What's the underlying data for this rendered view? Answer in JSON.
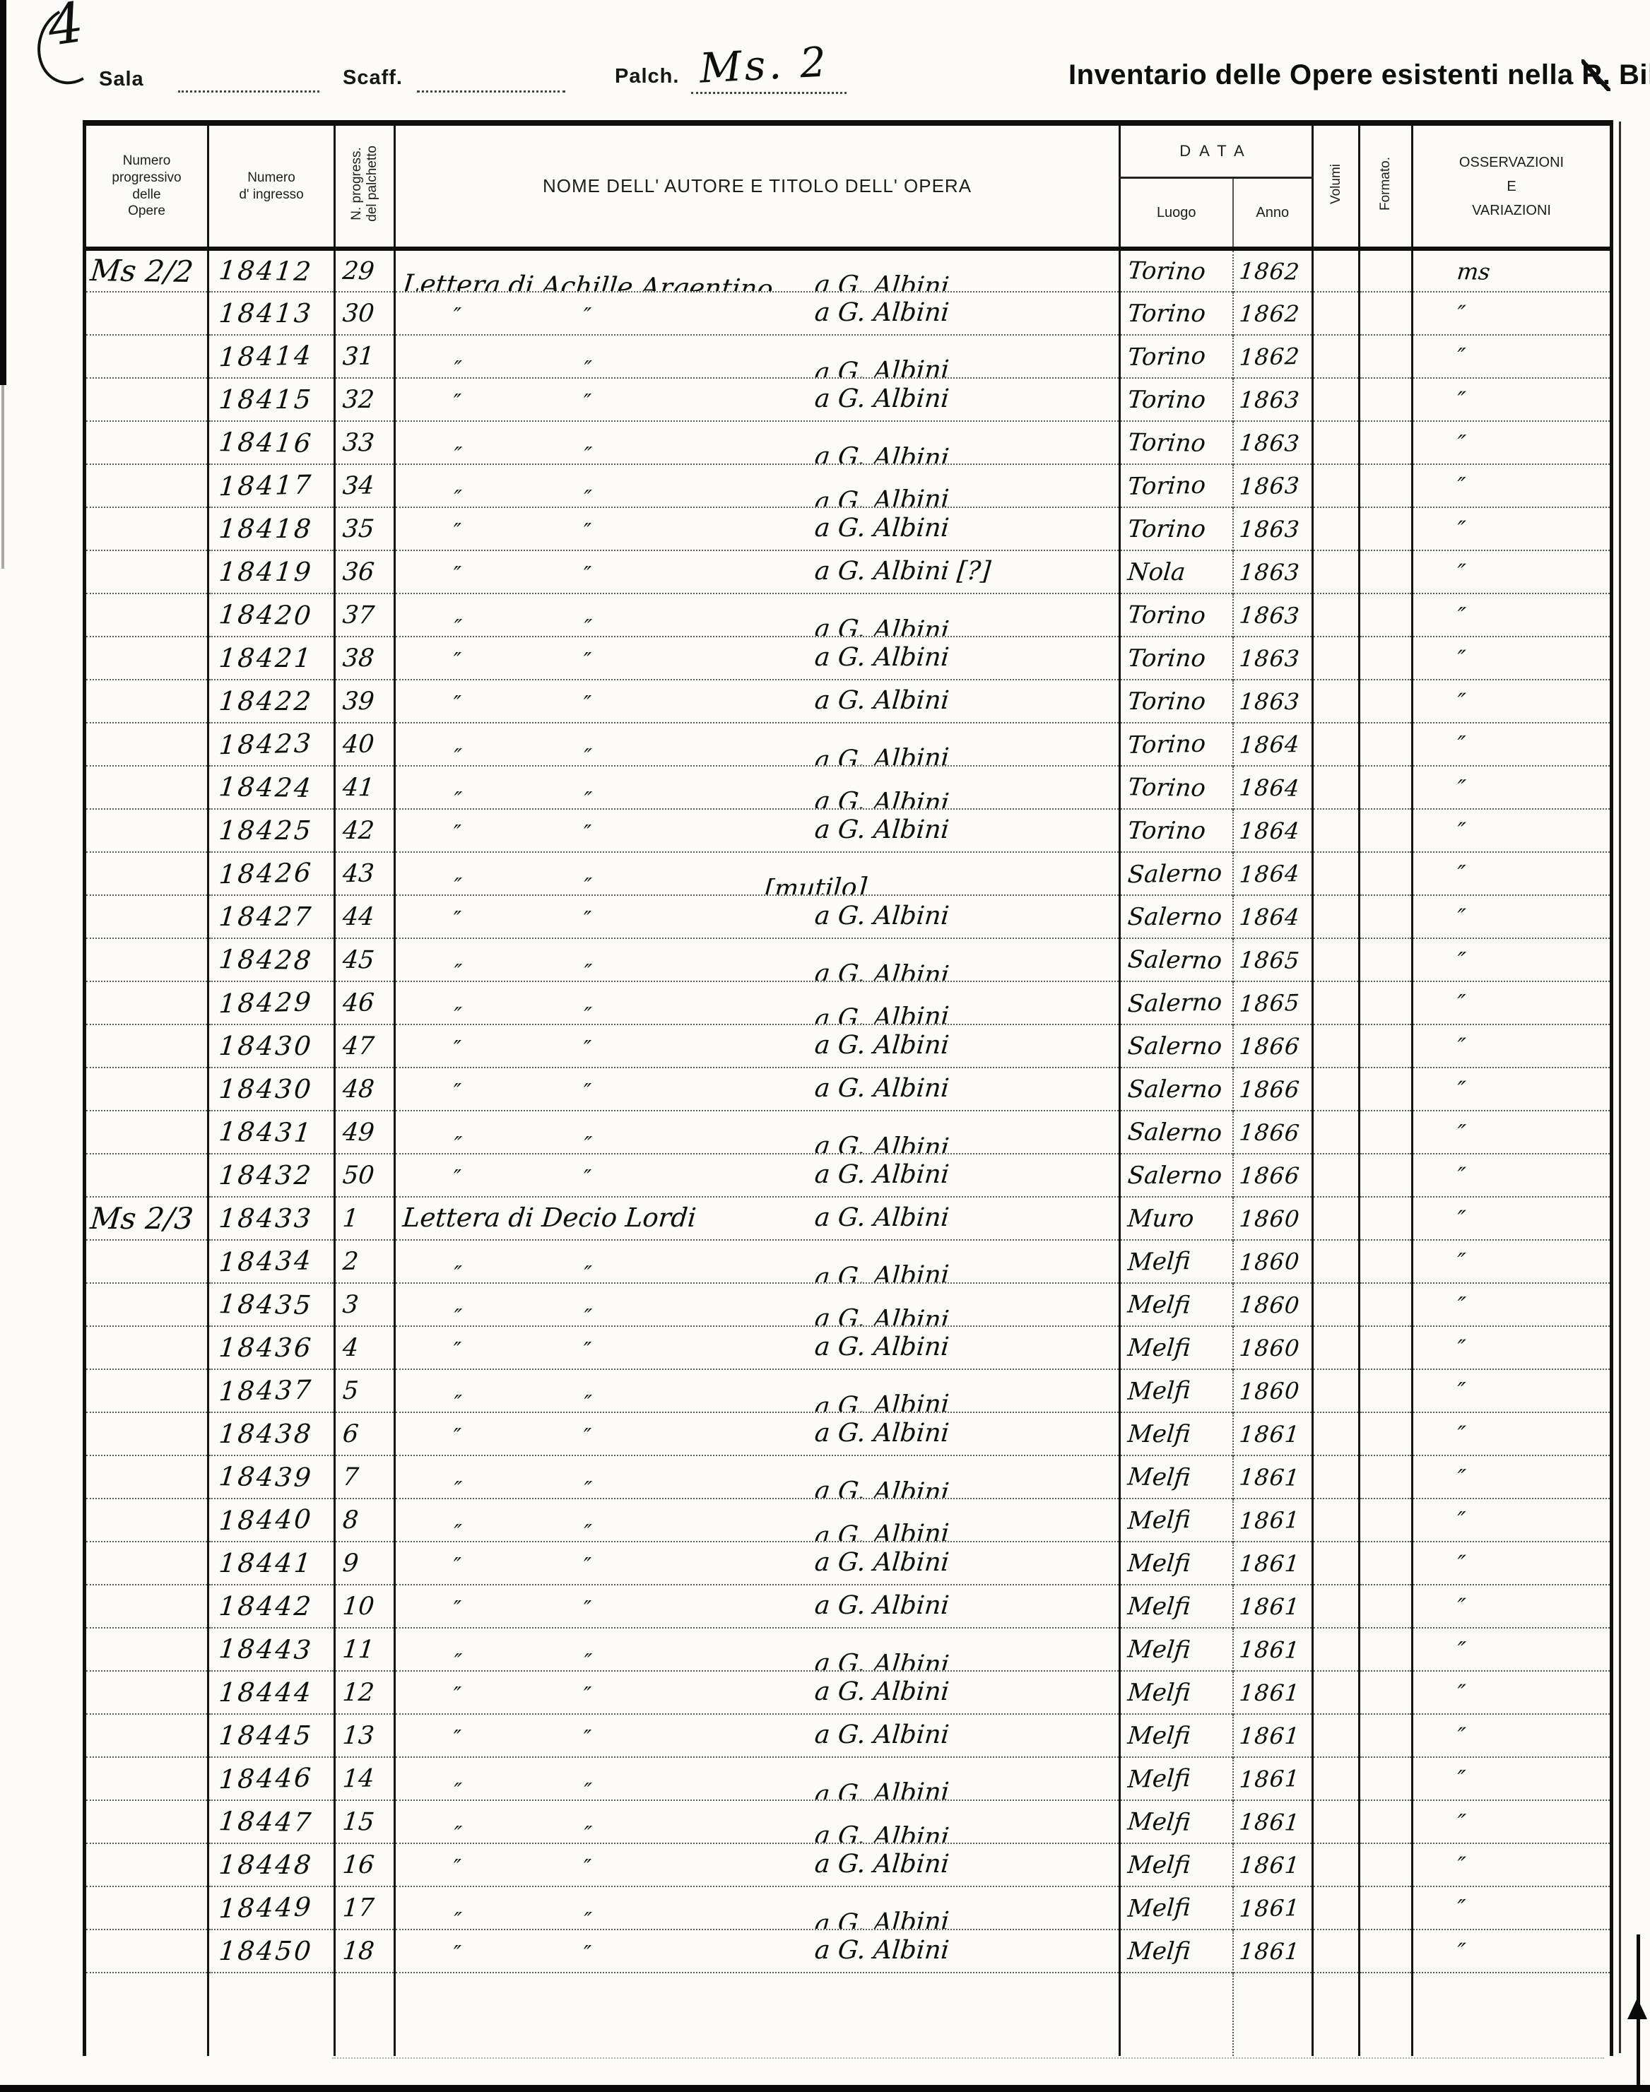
{
  "corner_mark": "4",
  "form_header": {
    "sala_label": "Sala",
    "scaff_label": "Scaff.",
    "palch_label": "Palch.",
    "palch_value": "Ms. 2",
    "title_pre": "Inventario delle Opere esistenti nella ",
    "title_struck": "R.",
    "title_post": " Biblioteca"
  },
  "table": {
    "headers": {
      "opere": "Numero\nprogressivo\ndelle\nOpere",
      "ingresso": "Numero\nd' ingresso",
      "palchetto": "N. progress.\ndel palchetto",
      "nome": "NOME DELL' AUTORE E TITOLO DELL' OPERA",
      "data": "DATA",
      "luogo": "Luogo",
      "anno": "Anno",
      "volumi": "Volumi",
      "formato": "Formato.",
      "osservazioni": "OSSERVAZIONI\nE\nVARIAZIONI"
    },
    "ditto_mark": "″",
    "rows": [
      {
        "opera": "Ms 2/2",
        "ingresso": "18412",
        "n": "29",
        "title": "Lettera di Achille Argentino",
        "recipient": "a G. Albini",
        "luogo": "Torino",
        "anno": "1862",
        "oss": "ms"
      },
      {
        "ingresso": "18413",
        "n": "30",
        "ditto": true,
        "recipient": "a G. Albini",
        "luogo": "Torino",
        "anno": "1862",
        "oss": "″"
      },
      {
        "ingresso": "18414",
        "n": "31",
        "ditto": true,
        "recipient": "a G. Albini",
        "luogo": "Torino",
        "anno": "1862",
        "oss": "″"
      },
      {
        "ingresso": "18415",
        "n": "32",
        "ditto": true,
        "recipient": "a G. Albini",
        "luogo": "Torino",
        "anno": "1863",
        "oss": "″"
      },
      {
        "ingresso": "18416",
        "n": "33",
        "ditto": true,
        "recipient": "a G. Albini",
        "luogo": "Torino",
        "anno": "1863",
        "oss": "″"
      },
      {
        "ingresso": "18417",
        "n": "34",
        "ditto": true,
        "recipient": "a G. Albini",
        "luogo": "Torino",
        "anno": "1863",
        "oss": "″"
      },
      {
        "ingresso": "18418",
        "n": "35",
        "ditto": true,
        "recipient": "a G. Albini",
        "luogo": "Torino",
        "anno": "1863",
        "oss": "″"
      },
      {
        "ingresso": "18419",
        "n": "36",
        "ditto": true,
        "recipient": "a G. Albini [?]",
        "luogo": "Nola",
        "anno": "1863",
        "oss": "″"
      },
      {
        "ingresso": "18420",
        "n": "37",
        "ditto": true,
        "recipient": "a G. Albini",
        "luogo": "Torino",
        "anno": "1863",
        "oss": "″"
      },
      {
        "ingresso": "18421",
        "n": "38",
        "ditto": true,
        "recipient": "a G. Albini",
        "luogo": "Torino",
        "anno": "1863",
        "oss": "″"
      },
      {
        "ingresso": "18422",
        "n": "39",
        "ditto": true,
        "recipient": "a G. Albini",
        "luogo": "Torino",
        "anno": "1863",
        "oss": "″"
      },
      {
        "ingresso": "18423",
        "n": "40",
        "ditto": true,
        "recipient": "a G. Albini",
        "luogo": "Torino",
        "anno": "1864",
        "oss": "″"
      },
      {
        "ingresso": "18424",
        "n": "41",
        "ditto": true,
        "recipient": "a G. Albini",
        "luogo": "Torino",
        "anno": "1864",
        "oss": "″"
      },
      {
        "ingresso": "18425",
        "n": "42",
        "ditto": true,
        "recipient": "a G. Albini",
        "luogo": "Torino",
        "anno": "1864",
        "oss": "″"
      },
      {
        "ingresso": "18426",
        "n": "43",
        "ditto": true,
        "center": "[mutilo]",
        "luogo": "Salerno",
        "anno": "1864",
        "oss": "″"
      },
      {
        "ingresso": "18427",
        "n": "44",
        "ditto": true,
        "recipient": "a G. Albini",
        "luogo": "Salerno",
        "anno": "1864",
        "oss": "″"
      },
      {
        "ingresso": "18428",
        "n": "45",
        "ditto": true,
        "recipient": "a G. Albini",
        "luogo": "Salerno",
        "anno": "1865",
        "oss": "″"
      },
      {
        "ingresso": "18429",
        "n": "46",
        "ditto": true,
        "recipient": "a G. Albini",
        "luogo": "Salerno",
        "anno": "1865",
        "oss": "″"
      },
      {
        "ingresso": "18430",
        "n": "47",
        "ditto": true,
        "recipient": "a G. Albini",
        "luogo": "Salerno",
        "anno": "1866",
        "oss": "″"
      },
      {
        "ingresso": "18430",
        "n": "48",
        "ditto": true,
        "recipient": "a G. Albini",
        "luogo": "Salerno",
        "anno": "1866",
        "oss": "″"
      },
      {
        "ingresso": "18431",
        "n": "49",
        "ditto": true,
        "recipient": "a G. Albini",
        "luogo": "Salerno",
        "anno": "1866",
        "oss": "″"
      },
      {
        "ingresso": "18432",
        "n": "50",
        "ditto": true,
        "recipient": "a G. Albini",
        "luogo": "Salerno",
        "anno": "1866",
        "oss": "″"
      },
      {
        "opera": "Ms 2/3",
        "ingresso": "18433",
        "n": "1",
        "title": "Lettera di Decio Lordi",
        "recipient": "a G. Albini",
        "luogo": "Muro",
        "anno": "1860",
        "oss": "″"
      },
      {
        "ingresso": "18434",
        "n": "2",
        "ditto": true,
        "recipient": "a G. Albini",
        "luogo": "Melfi",
        "anno": "1860",
        "oss": "″"
      },
      {
        "ingresso": "18435",
        "n": "3",
        "ditto": true,
        "recipient": "a G. Albini",
        "luogo": "Melfi",
        "anno": "1860",
        "oss": "″"
      },
      {
        "ingresso": "18436",
        "n": "4",
        "ditto": true,
        "recipient": "a G. Albini",
        "luogo": "Melfi",
        "anno": "1860",
        "oss": "″"
      },
      {
        "ingresso": "18437",
        "n": "5",
        "ditto": true,
        "recipient": "a G. Albini",
        "luogo": "Melfi",
        "anno": "1860",
        "oss": "″"
      },
      {
        "ingresso": "18438",
        "n": "6",
        "ditto": true,
        "recipient": "a G. Albini",
        "luogo": "Melfi",
        "anno": "1861",
        "oss": "″"
      },
      {
        "ingresso": "18439",
        "n": "7",
        "ditto": true,
        "recipient": "a G. Albini",
        "luogo": "Melfi",
        "anno": "1861",
        "oss": "″"
      },
      {
        "ingresso": "18440",
        "n": "8",
        "ditto": true,
        "recipient": "a G. Albini",
        "luogo": "Melfi",
        "anno": "1861",
        "oss": "″"
      },
      {
        "ingresso": "18441",
        "n": "9",
        "ditto": true,
        "recipient": "a G. Albini",
        "luogo": "Melfi",
        "anno": "1861",
        "oss": "″"
      },
      {
        "ingresso": "18442",
        "n": "10",
        "ditto": true,
        "recipient": "a G. Albini",
        "luogo": "Melfi",
        "anno": "1861",
        "oss": "″"
      },
      {
        "ingresso": "18443",
        "n": "11",
        "ditto": true,
        "recipient": "a G. Albini",
        "luogo": "Melfi",
        "anno": "1861",
        "oss": "″"
      },
      {
        "ingresso": "18444",
        "n": "12",
        "ditto": true,
        "recipient": "a G. Albini",
        "luogo": "Melfi",
        "anno": "1861",
        "oss": "″"
      },
      {
        "ingresso": "18445",
        "n": "13",
        "ditto": true,
        "recipient": "a G. Albini",
        "luogo": "Melfi",
        "anno": "1861",
        "oss": "″"
      },
      {
        "ingresso": "18446",
        "n": "14",
        "ditto": true,
        "recipient": "a G. Albini",
        "luogo": "Melfi",
        "anno": "1861",
        "oss": "″"
      },
      {
        "ingresso": "18447",
        "n": "15",
        "ditto": true,
        "recipient": "a G. Albini",
        "luogo": "Melfi",
        "anno": "1861",
        "oss": "″"
      },
      {
        "ingresso": "18448",
        "n": "16",
        "ditto": true,
        "recipient": "a G. Albini",
        "luogo": "Melfi",
        "anno": "1861",
        "oss": "″"
      },
      {
        "ingresso": "18449",
        "n": "17",
        "ditto": true,
        "recipient": "a G. Albini",
        "luogo": "Melfi",
        "anno": "1861",
        "oss": "″"
      },
      {
        "ingresso": "18450",
        "n": "18",
        "ditto": true,
        "recipient": "a G. Albini",
        "luogo": "Melfi",
        "anno": "1861",
        "oss": "″"
      }
    ]
  }
}
